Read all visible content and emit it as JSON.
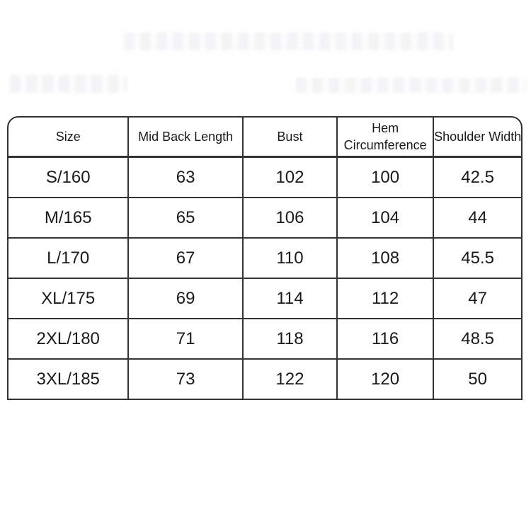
{
  "colors": {
    "background": "#ffffff",
    "grid_line": "#333333",
    "text": "#1a1a1a",
    "watermark": "#f3f4f6"
  },
  "chart_data": {
    "type": "table",
    "title": "",
    "unit_hint": "CM",
    "columns": [
      "Size",
      "Mid Back Length",
      "Bust",
      "Hem Circumference",
      "Shoulder Width"
    ],
    "rows": [
      [
        "S/160",
        "63",
        "102",
        "100",
        "42.5"
      ],
      [
        "M/165",
        "65",
        "106",
        "104",
        "44"
      ],
      [
        "L/170",
        "67",
        "110",
        "108",
        "45.5"
      ],
      [
        "XL/175",
        "69",
        "114",
        "112",
        "47"
      ],
      [
        "2XL/180",
        "71",
        "118",
        "116",
        "48.5"
      ],
      [
        "3XL/185",
        "73",
        "122",
        "120",
        "50"
      ]
    ]
  }
}
